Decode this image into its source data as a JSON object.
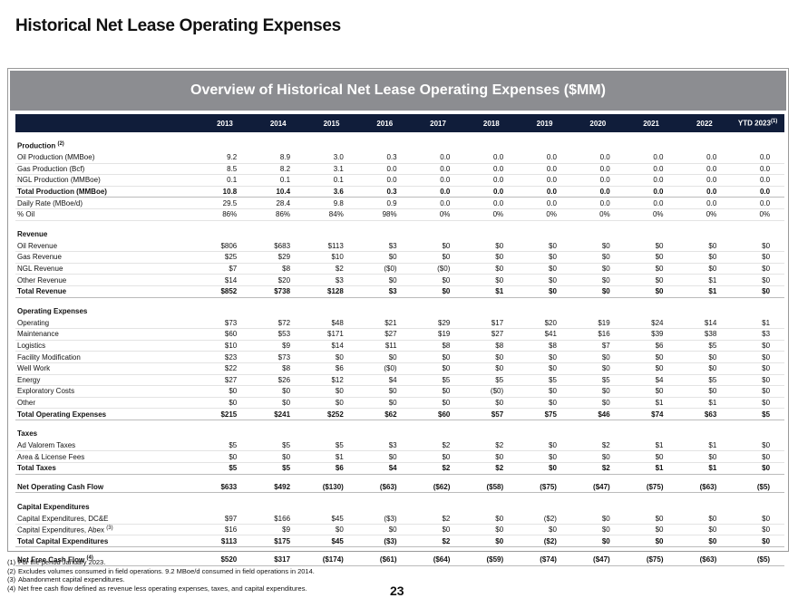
{
  "header": {
    "title": "Historical Net Lease Operating Expenses"
  },
  "panel": {
    "title": "Overview of Historical Net Lease Operating Expenses ($MM)"
  },
  "table": {
    "columns": [
      "2013",
      "2014",
      "2015",
      "2016",
      "2017",
      "2018",
      "2019",
      "2020",
      "2021",
      "2022",
      "YTD 2023"
    ],
    "last_column_note": "(1)",
    "sections": [
      {
        "title": "Production",
        "note": "(2)",
        "rows": [
          {
            "label": "Oil Production (MMBoe)",
            "values": [
              "9.2",
              "8.9",
              "3.0",
              "0.3",
              "0.0",
              "0.0",
              "0.0",
              "0.0",
              "0.0",
              "0.0",
              "0.0"
            ]
          },
          {
            "label": "Gas Production (Bcf)",
            "values": [
              "8.5",
              "8.2",
              "3.1",
              "0.0",
              "0.0",
              "0.0",
              "0.0",
              "0.0",
              "0.0",
              "0.0",
              "0.0"
            ]
          },
          {
            "label": "NGL Production (MMBoe)",
            "values": [
              "0.1",
              "0.1",
              "0.1",
              "0.0",
              "0.0",
              "0.0",
              "0.0",
              "0.0",
              "0.0",
              "0.0",
              "0.0"
            ]
          },
          {
            "label": "Total Production (MMBoe)",
            "bold": true,
            "values": [
              "10.8",
              "10.4",
              "3.6",
              "0.3",
              "0.0",
              "0.0",
              "0.0",
              "0.0",
              "0.0",
              "0.0",
              "0.0"
            ]
          },
          {
            "label": "Daily Rate (MBoe/d)",
            "values": [
              "29.5",
              "28.4",
              "9.8",
              "0.9",
              "0.0",
              "0.0",
              "0.0",
              "0.0",
              "0.0",
              "0.0",
              "0.0"
            ]
          },
          {
            "label": "% Oil",
            "values": [
              "86%",
              "86%",
              "84%",
              "98%",
              "0%",
              "0%",
              "0%",
              "0%",
              "0%",
              "0%",
              "0%"
            ]
          }
        ]
      },
      {
        "title": "Revenue",
        "rows": [
          {
            "label": "Oil Revenue",
            "values": [
              "$806",
              "$683",
              "$113",
              "$3",
              "$0",
              "$0",
              "$0",
              "$0",
              "$0",
              "$0",
              "$0"
            ]
          },
          {
            "label": "Gas Revenue",
            "values": [
              "$25",
              "$29",
              "$10",
              "$0",
              "$0",
              "$0",
              "$0",
              "$0",
              "$0",
              "$0",
              "$0"
            ]
          },
          {
            "label": "NGL Revenue",
            "values": [
              "$7",
              "$8",
              "$2",
              "($0)",
              "($0)",
              "$0",
              "$0",
              "$0",
              "$0",
              "$0",
              "$0"
            ]
          },
          {
            "label": "Other Revenue",
            "values": [
              "$14",
              "$20",
              "$3",
              "$0",
              "$0",
              "$0",
              "$0",
              "$0",
              "$0",
              "$1",
              "$0"
            ]
          },
          {
            "label": "Total Revenue",
            "bold": true,
            "values": [
              "$852",
              "$738",
              "$128",
              "$3",
              "$0",
              "$1",
              "$0",
              "$0",
              "$0",
              "$1",
              "$0"
            ]
          }
        ]
      },
      {
        "title": "Operating Expenses",
        "rows": [
          {
            "label": "Operating",
            "values": [
              "$73",
              "$72",
              "$48",
              "$21",
              "$29",
              "$17",
              "$20",
              "$19",
              "$24",
              "$14",
              "$1"
            ]
          },
          {
            "label": "Maintenance",
            "values": [
              "$60",
              "$53",
              "$171",
              "$27",
              "$19",
              "$27",
              "$41",
              "$16",
              "$39",
              "$38",
              "$3"
            ]
          },
          {
            "label": "Logistics",
            "values": [
              "$10",
              "$9",
              "$14",
              "$11",
              "$8",
              "$8",
              "$8",
              "$7",
              "$6",
              "$5",
              "$0"
            ]
          },
          {
            "label": "Facility Modification",
            "values": [
              "$23",
              "$73",
              "$0",
              "$0",
              "$0",
              "$0",
              "$0",
              "$0",
              "$0",
              "$0",
              "$0"
            ]
          },
          {
            "label": "Well Work",
            "values": [
              "$22",
              "$8",
              "$6",
              "($0)",
              "$0",
              "$0",
              "$0",
              "$0",
              "$0",
              "$0",
              "$0"
            ]
          },
          {
            "label": "Energy",
            "values": [
              "$27",
              "$26",
              "$12",
              "$4",
              "$5",
              "$5",
              "$5",
              "$5",
              "$4",
              "$5",
              "$0"
            ]
          },
          {
            "label": "Exploratory Costs",
            "values": [
              "$0",
              "$0",
              "$0",
              "$0",
              "$0",
              "($0)",
              "$0",
              "$0",
              "$0",
              "$0",
              "$0"
            ]
          },
          {
            "label": "Other",
            "values": [
              "$0",
              "$0",
              "$0",
              "$0",
              "$0",
              "$0",
              "$0",
              "$0",
              "$1",
              "$1",
              "$0"
            ]
          },
          {
            "label": "Total Operating Expenses",
            "bold": true,
            "values": [
              "$215",
              "$241",
              "$252",
              "$62",
              "$60",
              "$57",
              "$75",
              "$46",
              "$74",
              "$63",
              "$5"
            ]
          }
        ]
      },
      {
        "title": "Taxes",
        "rows": [
          {
            "label": "Ad Valorem Taxes",
            "values": [
              "$5",
              "$5",
              "$5",
              "$3",
              "$2",
              "$2",
              "$0",
              "$2",
              "$1",
              "$1",
              "$0"
            ]
          },
          {
            "label": "Area & License Fees",
            "values": [
              "$0",
              "$0",
              "$1",
              "$0",
              "$0",
              "$0",
              "$0",
              "$0",
              "$0",
              "$0",
              "$0"
            ]
          },
          {
            "label": "Total Taxes",
            "bold": true,
            "values": [
              "$5",
              "$5",
              "$6",
              "$4",
              "$2",
              "$2",
              "$0",
              "$2",
              "$1",
              "$1",
              "$0"
            ]
          }
        ]
      },
      {
        "rows": [
          {
            "label": "Net Operating Cash Flow",
            "bold": true,
            "values": [
              "$633",
              "$492",
              "($130)",
              "($63)",
              "($62)",
              "($58)",
              "($75)",
              "($47)",
              "($75)",
              "($63)",
              "($5)"
            ]
          }
        ]
      },
      {
        "title": "Capital Expenditures",
        "rows": [
          {
            "label": "Capital Expenditures, DC&E",
            "values": [
              "$97",
              "$166",
              "$45",
              "($3)",
              "$2",
              "$0",
              "($2)",
              "$0",
              "$0",
              "$0",
              "$0"
            ]
          },
          {
            "label": "Capital Expenditures, Abex",
            "note": "(3)",
            "values": [
              "$16",
              "$9",
              "$0",
              "$0",
              "$0",
              "$0",
              "$0",
              "$0",
              "$0",
              "$0",
              "$0"
            ]
          },
          {
            "label": "Total Capital Expenditures",
            "bold": true,
            "values": [
              "$113",
              "$175",
              "$45",
              "($3)",
              "$2",
              "$0",
              "($2)",
              "$0",
              "$0",
              "$0",
              "$0"
            ]
          }
        ]
      },
      {
        "rows": [
          {
            "label": "Net Free Cash Flow",
            "note": "(4)",
            "bold": true,
            "values": [
              "$520",
              "$317",
              "($174)",
              "($61)",
              "($64)",
              "($59)",
              "($74)",
              "($47)",
              "($75)",
              "($63)",
              "($5)"
            ]
          }
        ]
      }
    ]
  },
  "footnotes": [
    {
      "marker": "(1)",
      "text": "For the period January 2023."
    },
    {
      "marker": "(2)",
      "text": "Excludes volumes consumed in field operations. 9.2 MBoe/d consumed in field operations in 2014."
    },
    {
      "marker": "(3)",
      "text": "Abandonment capital expenditures."
    },
    {
      "marker": "(4)",
      "text": "Net free cash flow defined as revenue less operating expenses, taxes, and capital expenditures."
    }
  ],
  "page_number": "23"
}
